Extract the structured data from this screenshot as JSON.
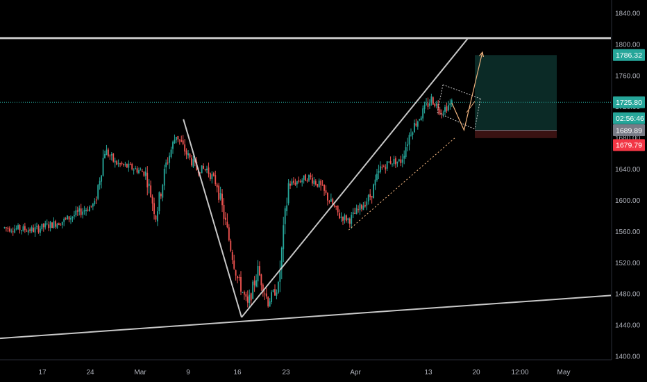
{
  "chart_data": {
    "type": "candlestick",
    "colors": {
      "background": "#000000",
      "up": "#26a69a",
      "down": "#ef5350",
      "axis_text": "#b2b5be",
      "trendline": "#c8c8c8",
      "projection": "#f0b37e",
      "last_price_line": "#26a69a",
      "target_zone": "#0b2a26",
      "stop_zone": "#3a1212"
    },
    "y_axis": {
      "ticks": [
        "1840.00",
        "1800.00",
        "1760.00",
        "1720.00",
        "1680.00",
        "1640.00",
        "1600.00",
        "1560.00",
        "1520.00",
        "1480.00",
        "1440.00",
        "1400.00"
      ],
      "ylim": [
        1400,
        1845
      ]
    },
    "x_axis": {
      "ticks": [
        "17",
        "24",
        "Mar",
        "9",
        "16",
        "23",
        "Apr",
        "13",
        "20",
        "12:00",
        "May"
      ]
    },
    "price_badges": [
      {
        "label": "1786.32",
        "value": 1786.32,
        "color": "#26a69a"
      },
      {
        "label": "1725.80",
        "value": 1725.8,
        "color": "#26a69a"
      },
      {
        "label": "02:56:46",
        "value": 1710.5,
        "color": "#26a69a"
      },
      {
        "label": "1689.89",
        "value": 1689.89,
        "color": "#787b86"
      },
      {
        "label": "1679.79",
        "value": 1679.79,
        "color": "#f23645"
      }
    ],
    "key_levels": {
      "resistance": 1808,
      "last_price": 1725.8,
      "target": 1786.32,
      "entry": 1689.89,
      "stop": 1679.79
    },
    "trendlines": [
      {
        "name": "horizontal-resistance",
        "points": [
          [
            0,
            1808
          ],
          [
            56,
            1808
          ]
        ]
      },
      {
        "name": "rising-support",
        "points": [
          [
            0,
            1423
          ],
          [
            56,
            1478
          ]
        ]
      },
      {
        "name": "impulse-down",
        "points": [
          [
            17.7,
            1704
          ],
          [
            23.4,
            1450
          ]
        ]
      },
      {
        "name": "channel-upper",
        "points": [
          [
            23.4,
            1450
          ],
          [
            45.6,
            1808
          ]
        ]
      },
      {
        "name": "channel-lower-dotted",
        "points": [
          [
            33.9,
            1562
          ],
          [
            44.3,
            1680
          ]
        ]
      }
    ],
    "projection": {
      "points": [
        [
          44.0,
          1725
        ],
        [
          45.2,
          1690
        ],
        [
          47.0,
          1790
        ]
      ]
    },
    "path": [
      [
        0,
        1565
      ],
      [
        3,
        1562
      ],
      [
        6,
        1574
      ],
      [
        9,
        1595
      ],
      [
        10,
        1665
      ],
      [
        11,
        1648
      ],
      [
        13,
        1640
      ],
      [
        14,
        1635
      ],
      [
        15,
        1580
      ],
      [
        16,
        1645
      ],
      [
        17,
        1685
      ],
      [
        18,
        1660
      ],
      [
        19,
        1640
      ],
      [
        20,
        1640
      ],
      [
        21,
        1620
      ],
      [
        22,
        1560
      ],
      [
        23,
        1500
      ],
      [
        24,
        1465
      ],
      [
        25,
        1510
      ],
      [
        26,
        1470
      ],
      [
        27,
        1490
      ],
      [
        28,
        1620
      ],
      [
        29,
        1625
      ],
      [
        30,
        1630
      ],
      [
        31,
        1620
      ],
      [
        32,
        1600
      ],
      [
        33,
        1580
      ],
      [
        34,
        1575
      ],
      [
        35,
        1590
      ],
      [
        36,
        1605
      ],
      [
        37,
        1640
      ],
      [
        38,
        1650
      ],
      [
        39,
        1650
      ],
      [
        40,
        1690
      ],
      [
        41,
        1710
      ],
      [
        42,
        1730
      ],
      [
        43,
        1715
      ],
      [
        44,
        1725
      ]
    ]
  }
}
